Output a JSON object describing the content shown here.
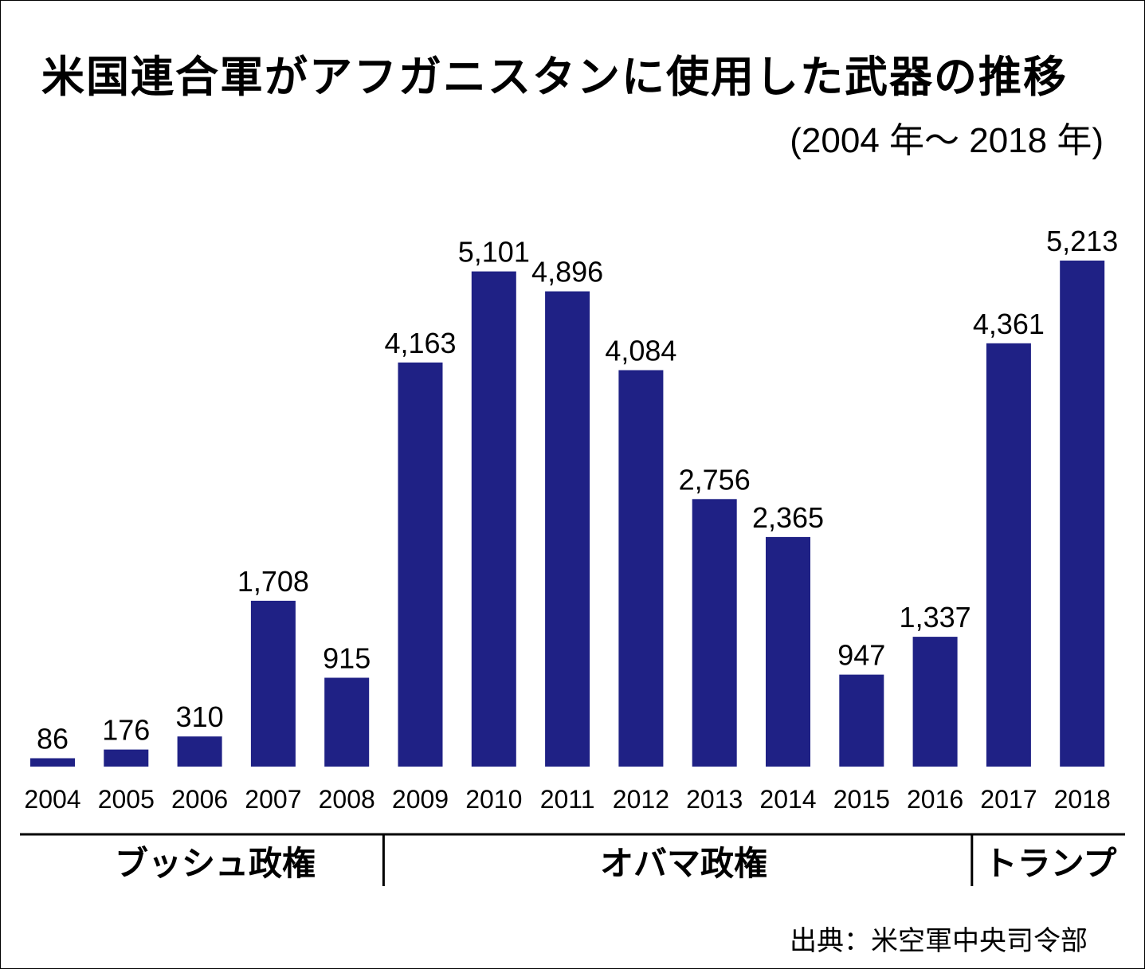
{
  "title": "米国連合軍がアフガニスタンに使用した武器の推移",
  "subtitle": "(2004 年〜 2018 年)",
  "source": "出典：米空軍中央司令部",
  "colors": {
    "bar": "#1f2185",
    "text": "#000000",
    "background": "#ffffff"
  },
  "chart_data": {
    "type": "bar",
    "title": "米国連合軍がアフガニスタンに使用した武器の推移",
    "subtitle": "(2004 年〜 2018 年)",
    "categories": [
      "2004",
      "2005",
      "2006",
      "2007",
      "2008",
      "2009",
      "2010",
      "2011",
      "2012",
      "2013",
      "2014",
      "2015",
      "2016",
      "2017",
      "2018"
    ],
    "values": [
      86,
      176,
      310,
      1708,
      915,
      4163,
      5101,
      4896,
      4084,
      2756,
      2365,
      947,
      1337,
      4361,
      5213
    ],
    "value_labels": [
      "86",
      "176",
      "310",
      "1,708",
      "915",
      "4,163",
      "5,101",
      "4,896",
      "4,084",
      "2,756",
      "2,365",
      "947",
      "1,337",
      "4,361",
      "5,213"
    ],
    "xlabel": "",
    "ylabel": "",
    "ylim": [
      0,
      5213
    ],
    "grid": false,
    "legend": "none",
    "groups": [
      {
        "label": "ブッシュ政権",
        "from": "2004",
        "to": "2008"
      },
      {
        "label": "オバマ政権",
        "from": "2009",
        "to": "2016"
      },
      {
        "label": "トランプ",
        "from": "2017",
        "to": "2018"
      }
    ]
  }
}
